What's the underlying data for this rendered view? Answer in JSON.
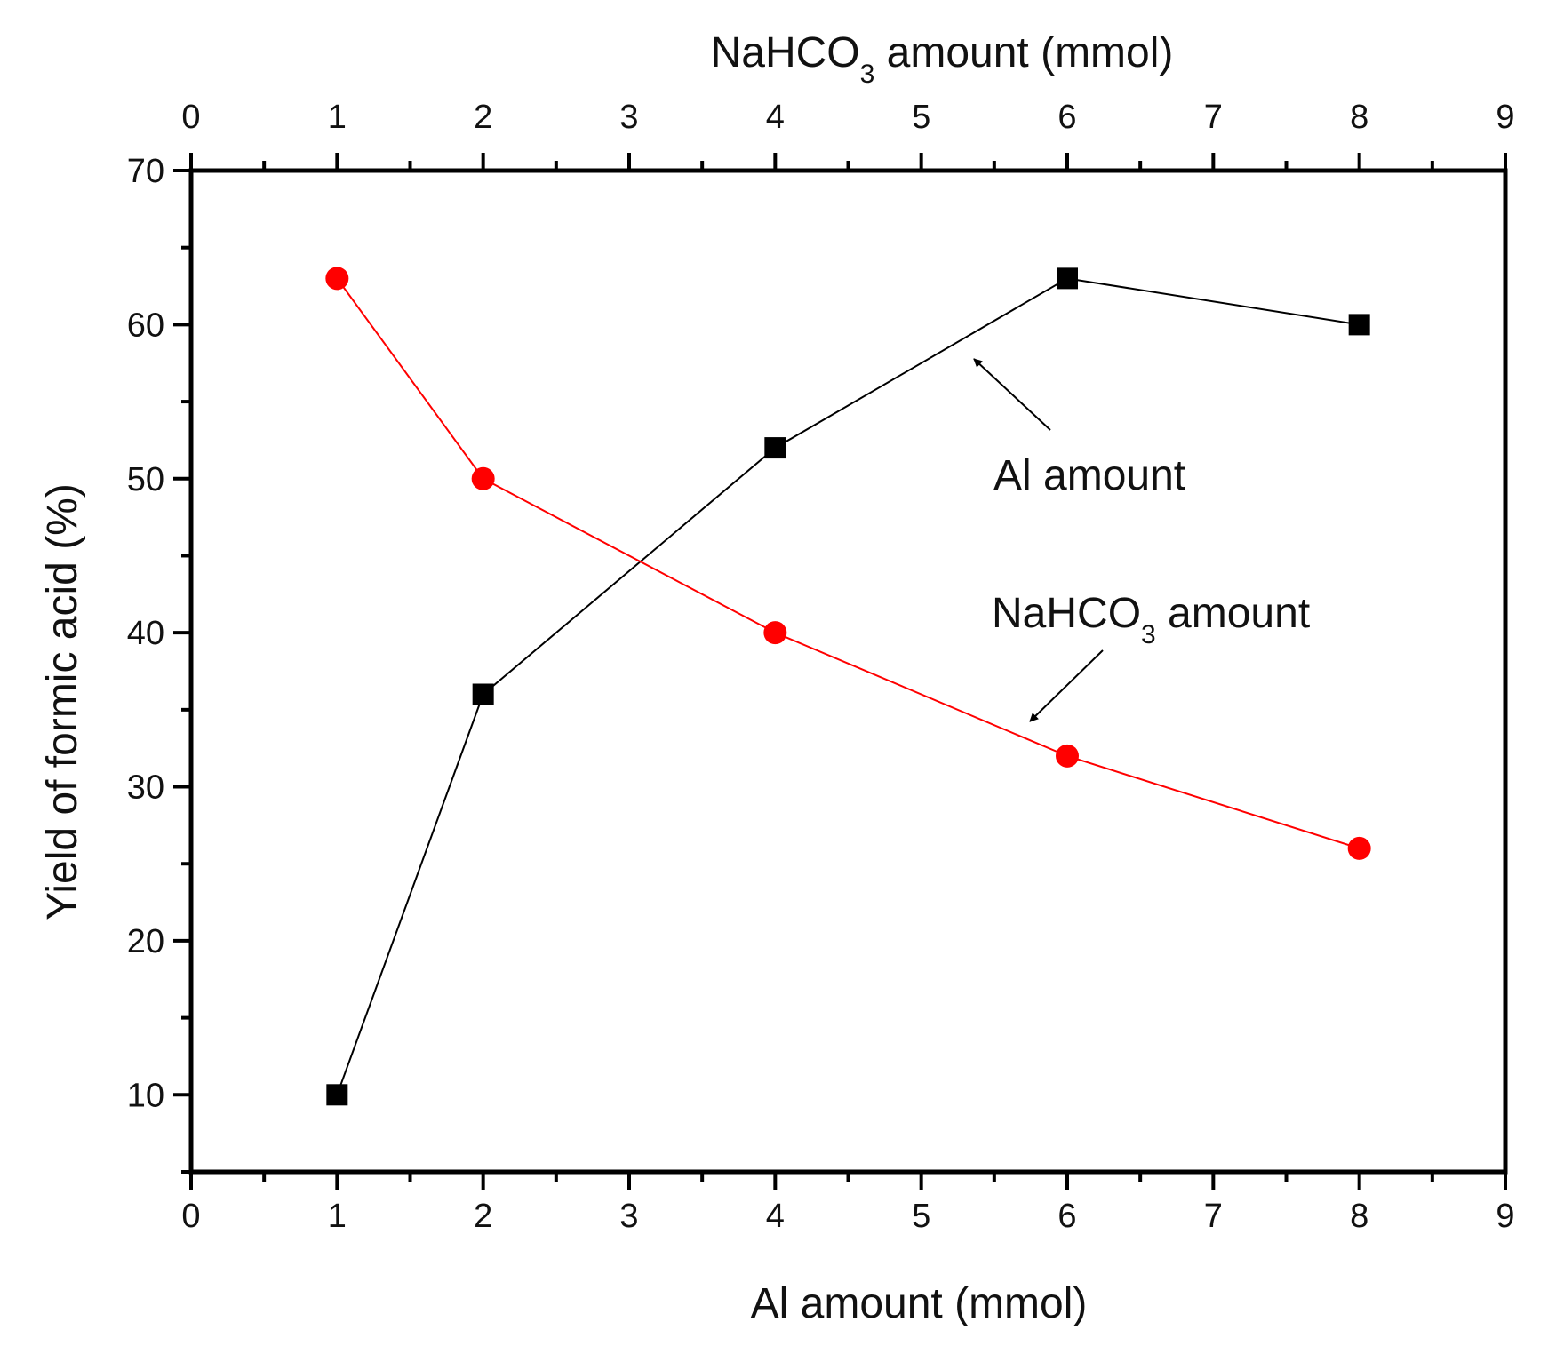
{
  "chart_data": {
    "type": "line",
    "ylabel": "Yield of formic acid (%)",
    "xlabel": "Al amount (mmol)",
    "x2label": {
      "prefix": "NaHCO",
      "sub": "3",
      "suffix": " amount (mmol)"
    },
    "xlim": [
      0,
      9
    ],
    "ylim": [
      5,
      70
    ],
    "xticks": [
      0,
      1,
      2,
      3,
      4,
      5,
      6,
      7,
      8,
      9
    ],
    "yticks": [
      10,
      20,
      30,
      40,
      50,
      60,
      70
    ],
    "grid": false,
    "series": [
      {
        "name": "Al amount",
        "axis": "bottom",
        "marker": "square",
        "color": "#000000",
        "x": [
          1,
          2,
          4,
          6,
          8
        ],
        "y": [
          10,
          36,
          52,
          63,
          60
        ]
      },
      {
        "name": "NaHCO3 amount",
        "axis": "top",
        "marker": "circle",
        "color": "#ff0000",
        "x": [
          1,
          2,
          4,
          6,
          8
        ],
        "y": [
          63,
          50,
          40,
          32,
          26
        ]
      }
    ],
    "annotations": [
      {
        "id": "al",
        "label": "Al amount",
        "series": "Al amount"
      },
      {
        "id": "na",
        "label_prefix": "NaHCO",
        "label_sub": "3",
        "label_suffix": " amount",
        "series": "NaHCO3 amount"
      }
    ]
  }
}
